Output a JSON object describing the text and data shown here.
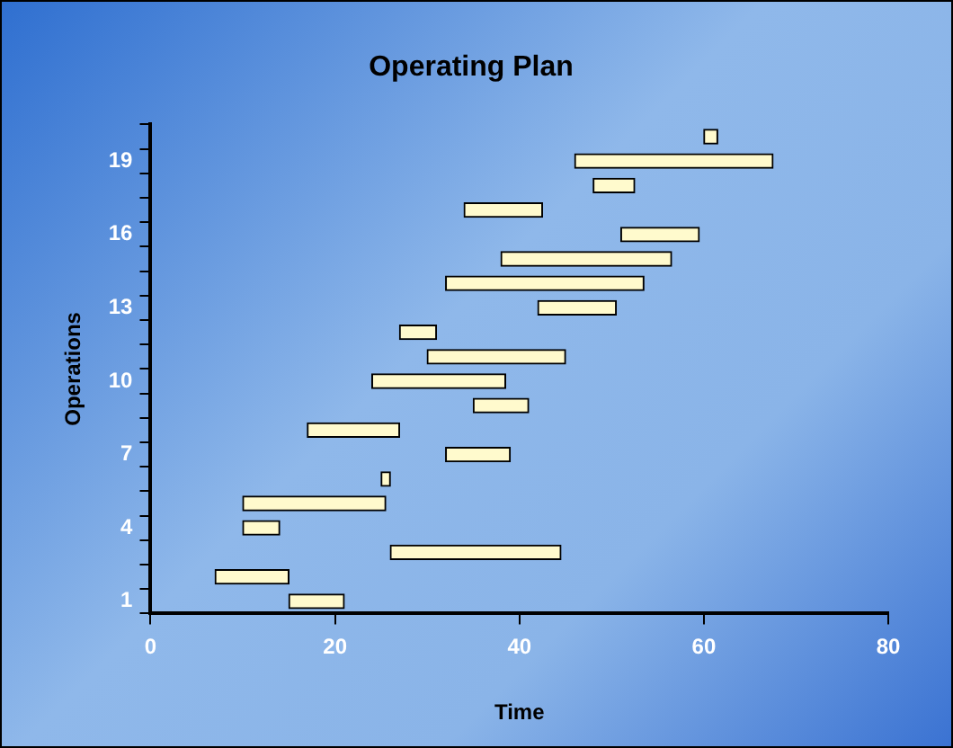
{
  "chart_data": {
    "type": "bar",
    "orientation": "horizontal",
    "title": "Operating Plan",
    "xlabel": "Time",
    "ylabel": "Operations",
    "categories": [
      null,
      "19",
      null,
      null,
      "16",
      null,
      null,
      "13",
      null,
      null,
      "10",
      null,
      null,
      "7",
      null,
      null,
      "4",
      null,
      null,
      "1"
    ],
    "base": [
      60,
      46,
      48,
      34,
      51,
      38,
      32,
      42,
      27,
      30,
      24,
      35,
      17,
      32,
      25,
      10,
      10,
      26,
      7,
      15
    ],
    "values": [
      1.5,
      21.5,
      4.5,
      8.5,
      8.5,
      18.5,
      21.5,
      8.5,
      4,
      15,
      14.5,
      6,
      10,
      7,
      1,
      15.5,
      4,
      18.5,
      8,
      6
    ],
    "color": "#fffacd",
    "xlim": [
      0,
      80
    ],
    "xticks": [
      0,
      20,
      40,
      60,
      80
    ],
    "grid": false,
    "legend": false
  }
}
